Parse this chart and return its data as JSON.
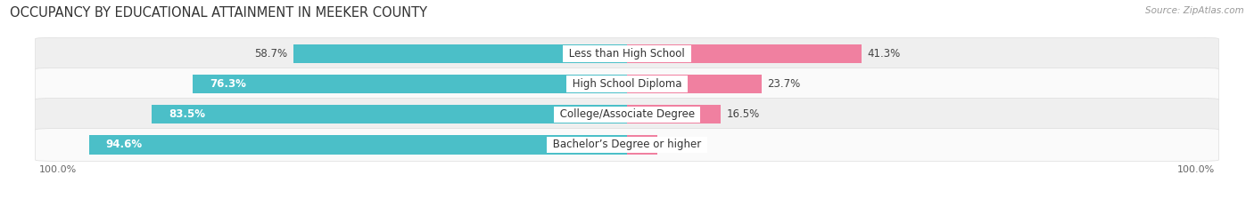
{
  "title": "OCCUPANCY BY EDUCATIONAL ATTAINMENT IN MEEKER COUNTY",
  "source": "Source: ZipAtlas.com",
  "categories": [
    "Less than High School",
    "High School Diploma",
    "College/Associate Degree",
    "Bachelor’s Degree or higher"
  ],
  "owner_pct": [
    58.7,
    76.3,
    83.5,
    94.6
  ],
  "renter_pct": [
    41.3,
    23.7,
    16.5,
    5.4
  ],
  "owner_color": "#4BBFC8",
  "renter_color": "#F080A0",
  "bar_height": 0.62,
  "row_bg_even": "#EFEFEF",
  "row_bg_odd": "#FAFAFA",
  "label_white": "#FFFFFF",
  "label_dark": "#444444",
  "label_fontsize": 8.5,
  "category_fontsize": 8.5,
  "title_fontsize": 10.5,
  "source_fontsize": 7.5,
  "axis_label_fontsize": 8,
  "legend_fontsize": 8.5,
  "background_color": "#FFFFFF"
}
